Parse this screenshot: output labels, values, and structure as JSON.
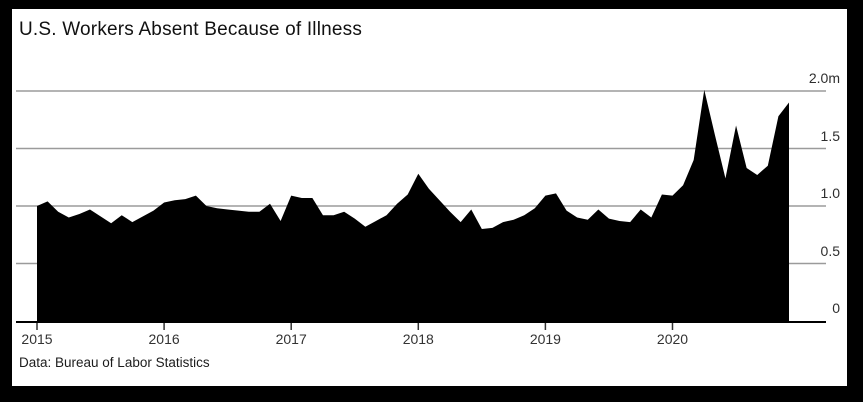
{
  "header": {
    "title": "U.S. Workers Absent Because of Illness"
  },
  "footer": {
    "source": "Data: Bureau of Labor Statistics"
  },
  "colors": {
    "frame": "#000000",
    "card_background": "#ffffff",
    "area_fill": "#000000",
    "gridline": "#9b9b9b",
    "axis_line": "#000000",
    "tick": "#333333",
    "label_text": "#2e2e2e"
  },
  "chart_data": {
    "type": "area",
    "title": "U.S. Workers Absent Because of Illness",
    "source": "Data: Bureau of Labor Statistics",
    "unit": "millions of workers",
    "frequency": "monthly",
    "ylim": [
      0,
      2.0
    ],
    "y_ticks": [
      2.0,
      1.5,
      1.0,
      0.5,
      0
    ],
    "y_tick_labels": [
      "2.0m",
      "1.5",
      "1.0",
      "0.5",
      "0"
    ],
    "x_tick_labels": [
      "2015",
      "2016",
      "2017",
      "2018",
      "2019",
      "2020"
    ],
    "grid": "horizontal",
    "legend": "none",
    "months": [
      "2015-01",
      "2015-02",
      "2015-03",
      "2015-04",
      "2015-05",
      "2015-06",
      "2015-07",
      "2015-08",
      "2015-09",
      "2015-10",
      "2015-11",
      "2015-12",
      "2016-01",
      "2016-02",
      "2016-03",
      "2016-04",
      "2016-05",
      "2016-06",
      "2016-07",
      "2016-08",
      "2016-09",
      "2016-10",
      "2016-11",
      "2016-12",
      "2017-01",
      "2017-02",
      "2017-03",
      "2017-04",
      "2017-05",
      "2017-06",
      "2017-07",
      "2017-08",
      "2017-09",
      "2017-10",
      "2017-11",
      "2017-12",
      "2018-01",
      "2018-02",
      "2018-03",
      "2018-04",
      "2018-05",
      "2018-06",
      "2018-07",
      "2018-08",
      "2018-09",
      "2018-10",
      "2018-11",
      "2018-12",
      "2019-01",
      "2019-02",
      "2019-03",
      "2019-04",
      "2019-05",
      "2019-06",
      "2019-07",
      "2019-08",
      "2019-09",
      "2019-10",
      "2019-11",
      "2019-12",
      "2020-01",
      "2020-02",
      "2020-03",
      "2020-04",
      "2020-05",
      "2020-06",
      "2020-07",
      "2020-08",
      "2020-09",
      "2020-10",
      "2020-11",
      "2020-12"
    ],
    "values": [
      1.0,
      1.04,
      0.95,
      0.9,
      0.93,
      0.97,
      0.91,
      0.85,
      0.92,
      0.86,
      0.91,
      0.96,
      1.03,
      1.05,
      1.06,
      1.09,
      1.0,
      0.98,
      0.97,
      0.96,
      0.95,
      0.95,
      1.02,
      0.87,
      1.09,
      1.07,
      1.07,
      0.92,
      0.92,
      0.95,
      0.89,
      0.82,
      0.87,
      0.92,
      1.02,
      1.1,
      1.28,
      1.15,
      1.05,
      0.95,
      0.86,
      0.97,
      0.8,
      0.81,
      0.86,
      0.88,
      0.92,
      0.98,
      1.09,
      1.11,
      0.96,
      0.9,
      0.88,
      0.97,
      0.89,
      0.87,
      0.86,
      0.97,
      0.9,
      1.1,
      1.09,
      1.18,
      1.4,
      2.01,
      1.62,
      1.24,
      1.7,
      1.33,
      1.27,
      1.35,
      1.78,
      1.9
    ]
  }
}
